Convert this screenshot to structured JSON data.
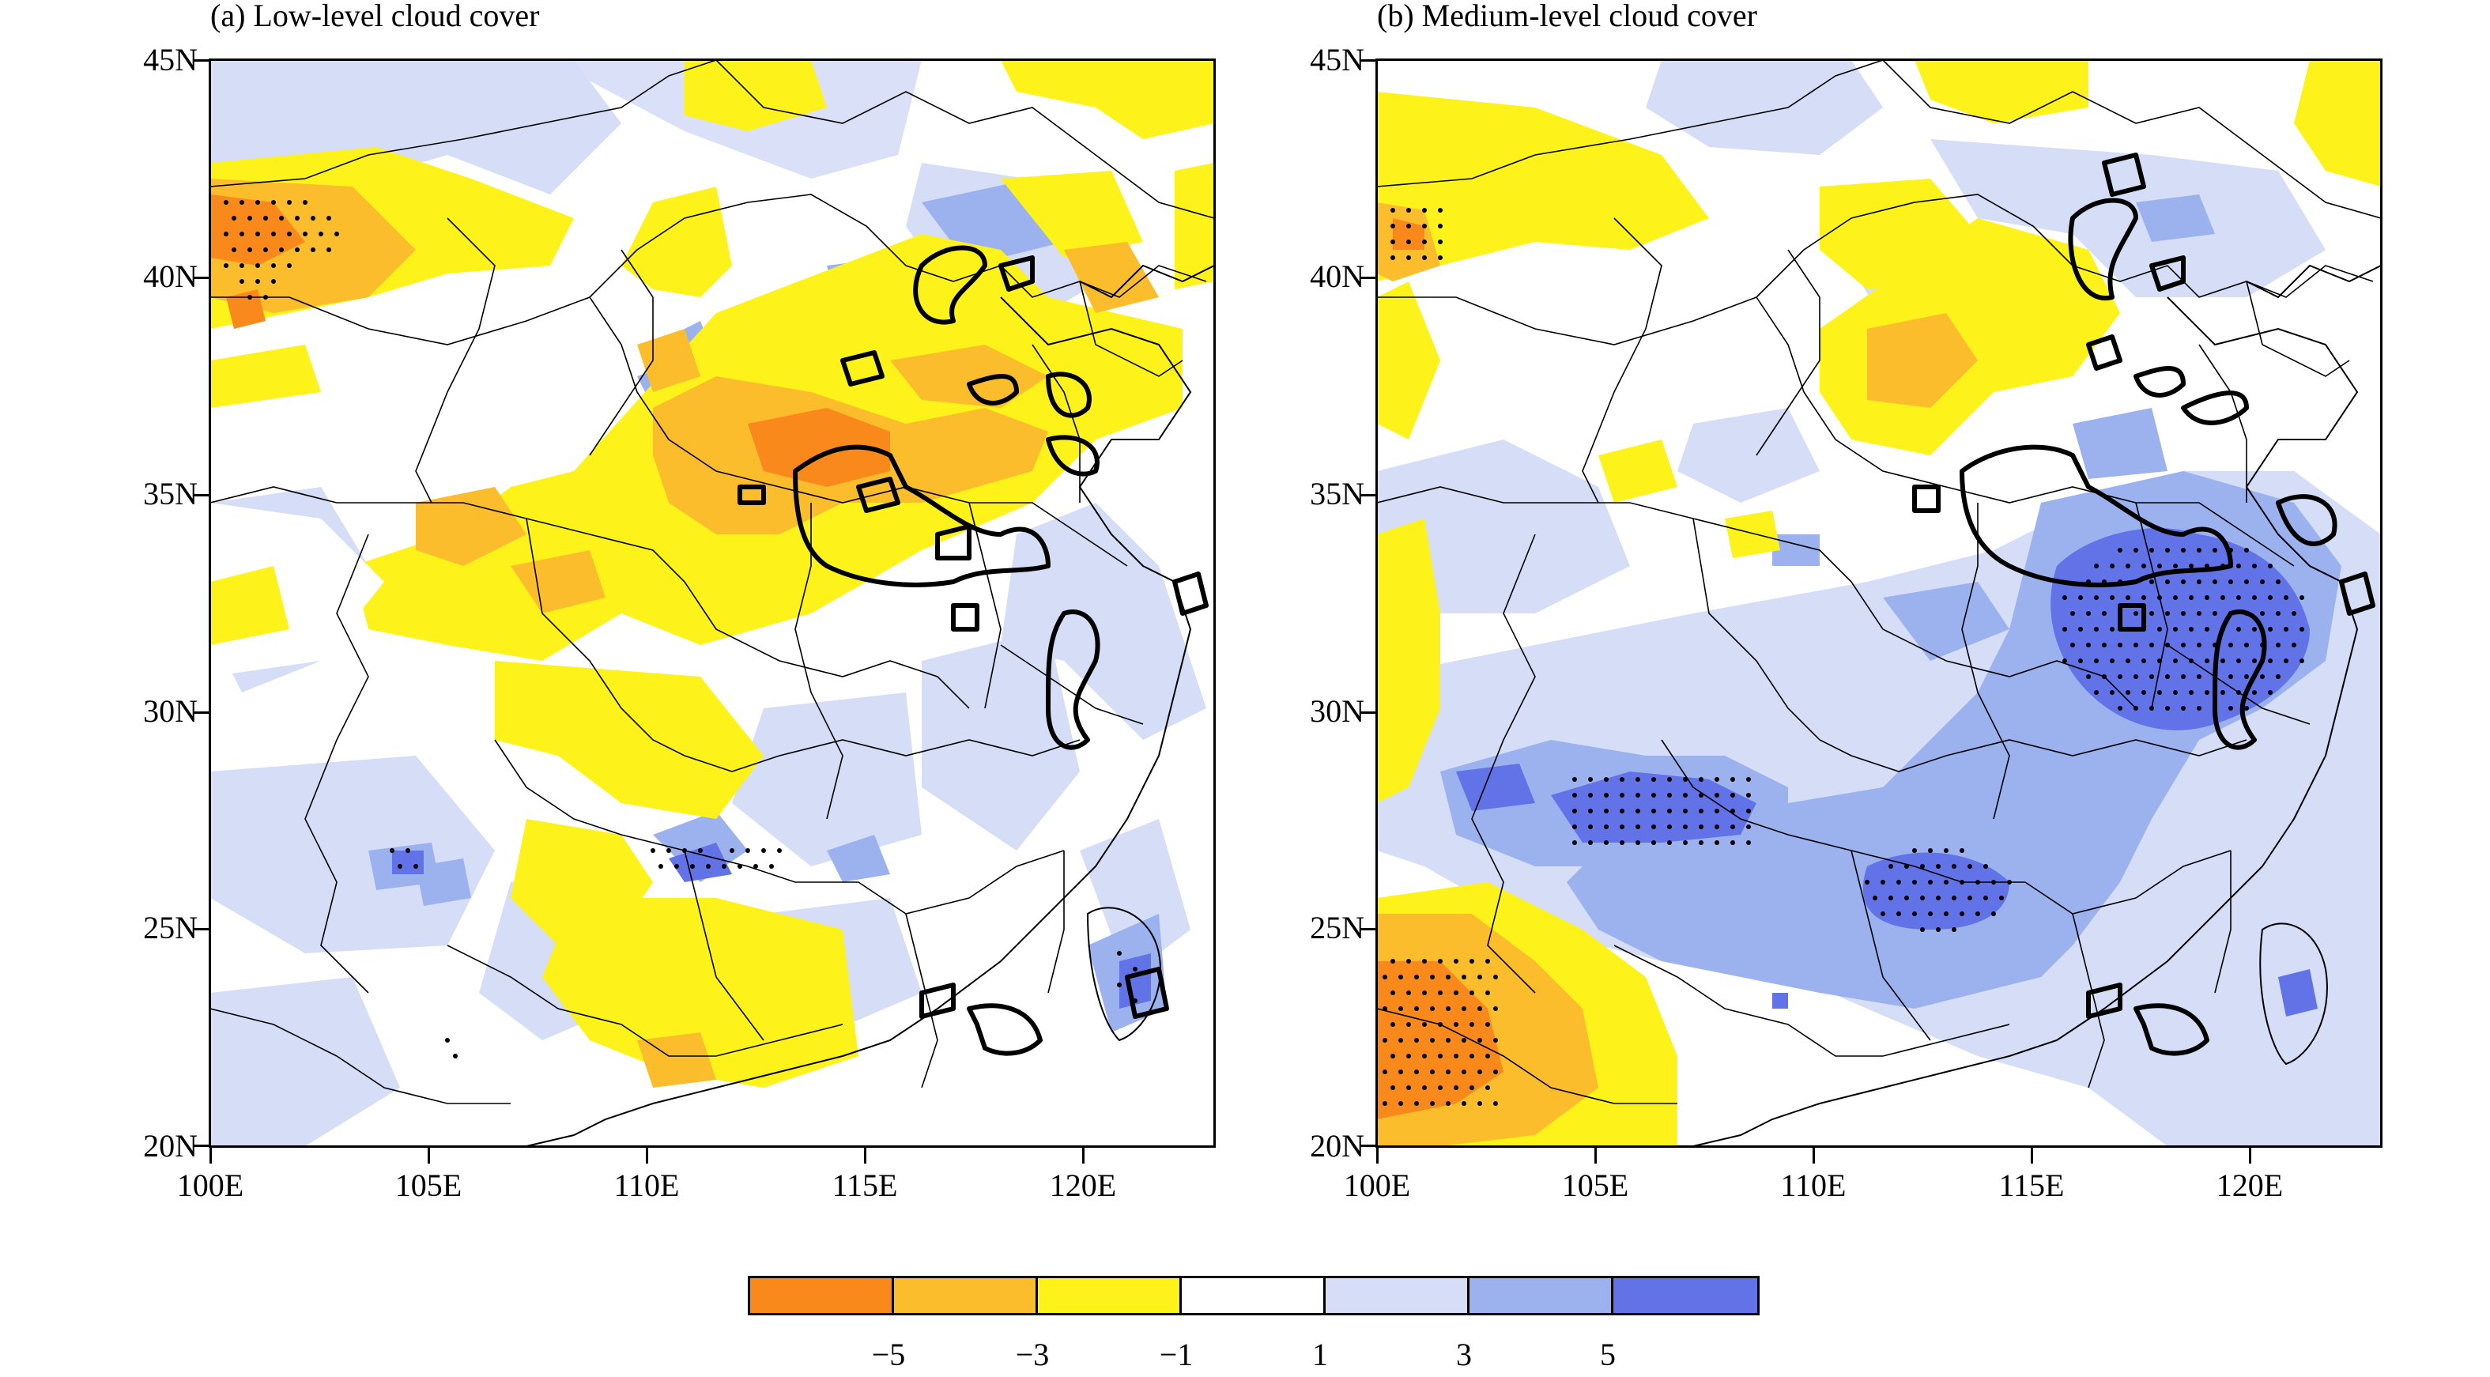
{
  "panels": [
    {
      "title": "(a) Low-level cloud cover"
    },
    {
      "title": "(b) Medium-level cloud cover"
    }
  ],
  "axes": {
    "lat_labels": [
      "45N",
      "40N",
      "35N",
      "30N",
      "25N",
      "20N"
    ],
    "lon_labels": [
      "100E",
      "105E",
      "110E",
      "115E",
      "120E"
    ],
    "lat_range": [
      20,
      45
    ],
    "lon_range": [
      100,
      123
    ]
  },
  "colorbar": {
    "colors": [
      "#f8891a",
      "#fbbd2c",
      "#fdf31a",
      "#ffffff",
      "#d5ddf7",
      "#9bb2ef",
      "#6173e6"
    ],
    "labels": [
      "−5",
      "−3",
      "−1",
      "1",
      "3",
      "5"
    ]
  },
  "legend_meaning": {
    "stipple": "dots",
    "contour": "thick black line"
  }
}
